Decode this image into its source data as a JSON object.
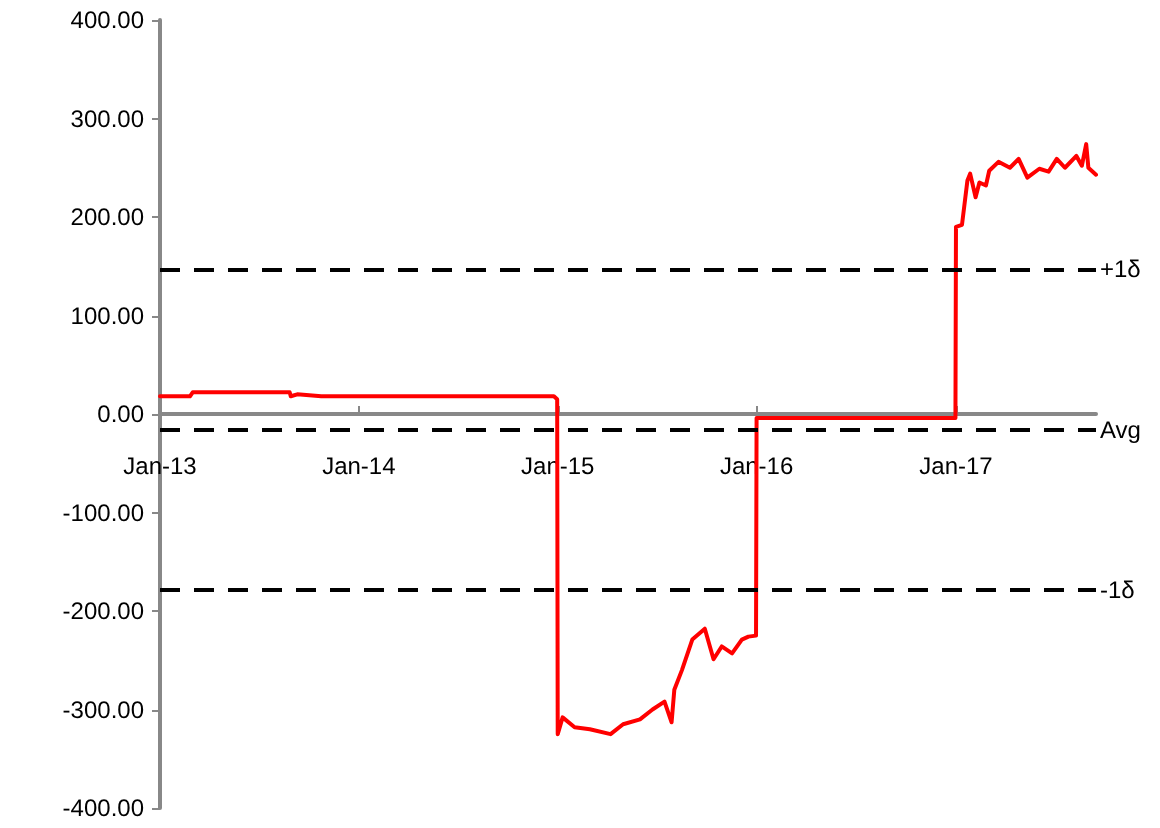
{
  "chart_data": {
    "type": "line",
    "marker": "none",
    "line_style": "solid",
    "x": [
      "2013-01-01",
      "2013-02-25",
      "2013-03-02",
      "2013-08-27",
      "2013-08-29",
      "2013-09-10",
      "2013-10-24",
      "2014-12-25",
      "2014-12-31",
      "2015-01-01",
      "2015-01-10",
      "2015-02-01",
      "2015-03-01",
      "2015-04-08",
      "2015-05-01",
      "2015-06-01",
      "2015-06-24",
      "2015-07-16",
      "2015-07-29",
      "2015-08-03",
      "2015-08-17",
      "2015-09-05",
      "2015-09-28",
      "2015-10-14",
      "2015-10-29",
      "2015-11-17",
      "2015-12-05",
      "2015-12-17",
      "2015-12-31",
      "2016-01-01",
      "2016-12-31",
      "2017-01-01",
      "2017-01-12",
      "2017-01-22",
      "2017-01-27",
      "2017-02-06",
      "2017-02-13",
      "2017-02-25",
      "2017-03-03",
      "2017-03-20",
      "2017-04-10",
      "2017-04-26",
      "2017-05-12",
      "2017-06-03",
      "2017-06-20",
      "2017-07-05",
      "2017-07-20",
      "2017-08-10",
      "2017-08-20",
      "2017-08-28",
      "2017-09-01",
      "2017-09-15"
    ],
    "series": [
      {
        "color": "#ff0000",
        "values": [
          18,
          18,
          22,
          22,
          18,
          20,
          18,
          18,
          15,
          -325,
          -308,
          -318,
          -320,
          -325,
          -315,
          -310,
          -300,
          -292,
          -313,
          -280,
          -260,
          -229,
          -218,
          -249,
          -236,
          -243,
          -229,
          -226,
          -225,
          -4,
          -4,
          190,
          192,
          237,
          244,
          220,
          235,
          232,
          247,
          256,
          250,
          259,
          240,
          249,
          246,
          259,
          250,
          262,
          252,
          274,
          250,
          243
        ]
      }
    ],
    "xlim": [
      "2013-01-01",
      "2017-09-15"
    ],
    "xticks": [
      {
        "value": "2013-01-01",
        "label": "Jan-13"
      },
      {
        "value": "2014-01-01",
        "label": "Jan-14"
      },
      {
        "value": "2015-01-01",
        "label": "Jan-15"
      },
      {
        "value": "2016-01-01",
        "label": "Jan-16"
      },
      {
        "value": "2017-01-01",
        "label": "Jan-17"
      }
    ],
    "ylim": [
      -400,
      400
    ],
    "yticks": [
      {
        "value": -400,
        "label": "-400.00"
      },
      {
        "value": -300,
        "label": "-300.00"
      },
      {
        "value": -200,
        "label": "-200.00"
      },
      {
        "value": -100,
        "label": "-100.00"
      },
      {
        "value": 0,
        "label": "0.00"
      },
      {
        "value": 100,
        "label": "100.00"
      },
      {
        "value": 200,
        "label": "200.00"
      },
      {
        "value": 300,
        "label": "300.00"
      },
      {
        "value": 400,
        "label": "400.00"
      }
    ],
    "ref_lines": [
      {
        "axis": "y",
        "value": 147,
        "label": "+1δ",
        "color": "#000000",
        "line_style": "dashed"
      },
      {
        "axis": "y",
        "value": -16,
        "label": "Avg",
        "color": "#000000",
        "line_style": "dashed"
      },
      {
        "axis": "y",
        "value": -179,
        "label": "-1δ",
        "color": "#000000",
        "line_style": "dashed"
      }
    ]
  }
}
